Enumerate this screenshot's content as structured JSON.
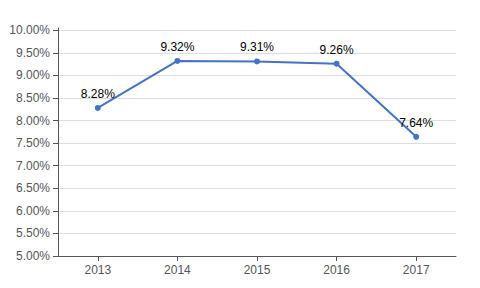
{
  "chart_data": {
    "type": "line",
    "x": [
      2013,
      2014,
      2015,
      2016,
      2017
    ],
    "values": [
      0.0828,
      0.0932,
      0.0931,
      0.0926,
      0.0764
    ],
    "value_labels": [
      "8.28%",
      "9.32%",
      "9.31%",
      "9.26%",
      "7.64%"
    ],
    "color": "#4472C4",
    "marker": "circle",
    "xlim": [
      2012.5,
      2017.5
    ],
    "xticks": [
      2013,
      2014,
      2015,
      2016,
      2017
    ],
    "ylim": [
      0.05,
      0.1005
    ],
    "yticks": [
      {
        "value": 0.05,
        "label": "5.00%"
      },
      {
        "value": 0.055,
        "label": "5.50%"
      },
      {
        "value": 0.06,
        "label": "6.00%"
      },
      {
        "value": 0.065,
        "label": "6.50%"
      },
      {
        "value": 0.07,
        "label": "7.00%"
      },
      {
        "value": 0.075,
        "label": "7.50%"
      },
      {
        "value": 0.08,
        "label": "8.00%"
      },
      {
        "value": 0.085,
        "label": "8.50%"
      },
      {
        "value": 0.09,
        "label": "9.00%"
      },
      {
        "value": 0.095,
        "label": "9.50%"
      },
      {
        "value": 0.1,
        "label": "10.00%"
      }
    ],
    "grid": true,
    "data_labels": true
  }
}
